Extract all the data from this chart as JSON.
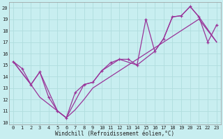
{
  "xlabel": "Windchill (Refroidissement éolien,°C)",
  "bg_color": "#c8eef0",
  "line_color": "#993399",
  "grid_color": "#b0dddd",
  "xlim": [
    -0.5,
    23.5
  ],
  "ylim": [
    9.8,
    20.5
  ],
  "xticks": [
    0,
    1,
    2,
    3,
    4,
    5,
    6,
    7,
    8,
    9,
    10,
    11,
    12,
    13,
    14,
    15,
    16,
    17,
    18,
    19,
    20,
    21,
    22,
    23
  ],
  "yticks": [
    10,
    11,
    12,
    13,
    14,
    15,
    16,
    17,
    18,
    19,
    20
  ],
  "figsize": [
    3.2,
    2.0
  ],
  "dpi": 100,
  "series1_x": [
    0,
    1,
    2,
    3,
    4,
    5,
    6,
    7,
    8,
    9,
    10,
    11,
    12,
    13,
    14,
    15,
    16,
    17,
    18,
    19,
    20,
    21,
    22,
    23
  ],
  "series1_y": [
    15.3,
    14.7,
    13.3,
    14.4,
    12.2,
    11.0,
    10.4,
    12.6,
    13.3,
    13.5,
    14.5,
    15.2,
    15.5,
    15.5,
    15.0,
    19.0,
    16.2,
    17.3,
    19.2,
    19.3,
    20.1,
    19.2,
    17.0,
    18.5
  ],
  "series2_x": [
    0,
    2,
    3,
    5,
    6,
    8,
    9,
    10,
    12,
    14,
    16,
    17,
    18,
    19,
    20,
    21,
    23
  ],
  "series2_y": [
    15.3,
    13.3,
    14.4,
    11.0,
    10.4,
    13.3,
    13.5,
    14.5,
    15.5,
    15.0,
    16.2,
    17.3,
    19.2,
    19.3,
    20.1,
    19.2,
    17.0
  ],
  "series3_x": [
    0,
    2,
    3,
    5,
    6,
    7,
    8,
    9,
    10,
    12,
    13,
    14,
    15,
    16,
    17,
    18,
    19,
    20,
    21,
    23
  ],
  "series3_y": [
    15.3,
    13.3,
    12.2,
    11.0,
    10.4,
    11.1,
    12.0,
    13.0,
    13.5,
    14.5,
    15.0,
    15.5,
    16.0,
    16.5,
    17.0,
    17.5,
    18.0,
    18.5,
    19.0,
    17.0
  ]
}
